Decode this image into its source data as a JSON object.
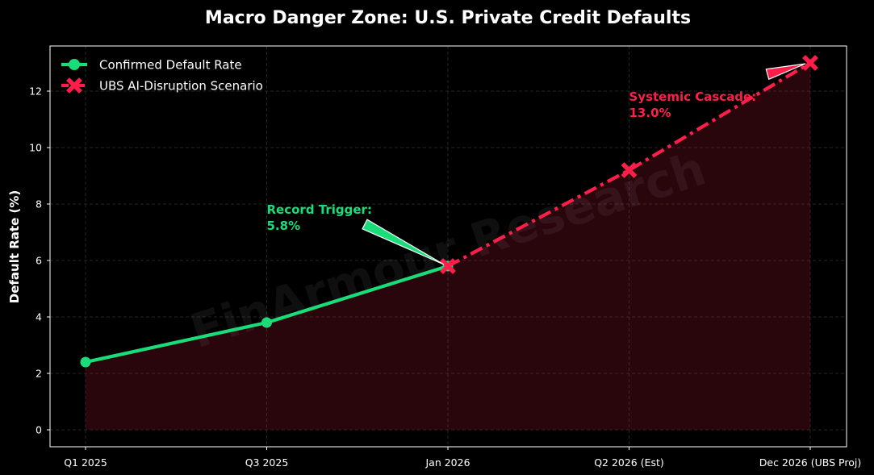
{
  "chart_data": {
    "type": "line",
    "title": "Macro Danger Zone: U.S. Private Credit Defaults",
    "xlabel": "",
    "ylabel": "Default Rate (%)",
    "categories": [
      "Q1 2025",
      "Q3 2025",
      "Jan 2026",
      "Q2 2026 (Est)",
      "Dec 2026 (UBS Proj)"
    ],
    "ylim": [
      -0.6,
      13.6
    ],
    "yticks": [
      0,
      2,
      4,
      6,
      8,
      10,
      12
    ],
    "grid": true,
    "legend_position": "top-left",
    "series": [
      {
        "name": "Confirmed Default Rate",
        "x": [
          "Q1 2025",
          "Q3 2025",
          "Jan 2026"
        ],
        "values": [
          2.4,
          3.8,
          5.8
        ],
        "color": "#1add7a",
        "line_style": "solid",
        "marker": "circle"
      },
      {
        "name": "UBS AI-Disruption Scenario",
        "x": [
          "Jan 2026",
          "Q2 2026 (Est)",
          "Dec 2026 (UBS Proj)"
        ],
        "values": [
          5.8,
          9.2,
          13.0
        ],
        "color": "#ff1e4a",
        "line_style": "dash-dot",
        "marker": "x"
      }
    ],
    "fill_area": {
      "color": "#ff1e4a",
      "x": [
        "Q1 2025",
        "Q3 2025",
        "Jan 2026",
        "Q2 2026 (Est)",
        "Dec 2026 (UBS Proj)"
      ],
      "values": [
        2.4,
        3.8,
        5.8,
        9.2,
        13.0
      ]
    },
    "annotations": [
      {
        "label": "Record Trigger:",
        "value_label": "5.8%",
        "point": {
          "x": "Jan 2026",
          "y": 5.8
        },
        "text_at": {
          "x": "Q3 2025",
          "y": 7.8
        },
        "color": "#1add7a"
      },
      {
        "label": "Systemic Cascade:",
        "value_label": "13.0%",
        "point": {
          "x": "Dec 2026 (UBS Proj)",
          "y": 13.0
        },
        "text_at": {
          "x": "Q2 2026 (Est)",
          "y": 11.8
        },
        "color": "#ff1e4a"
      }
    ],
    "watermark": "FinArmour Research"
  }
}
